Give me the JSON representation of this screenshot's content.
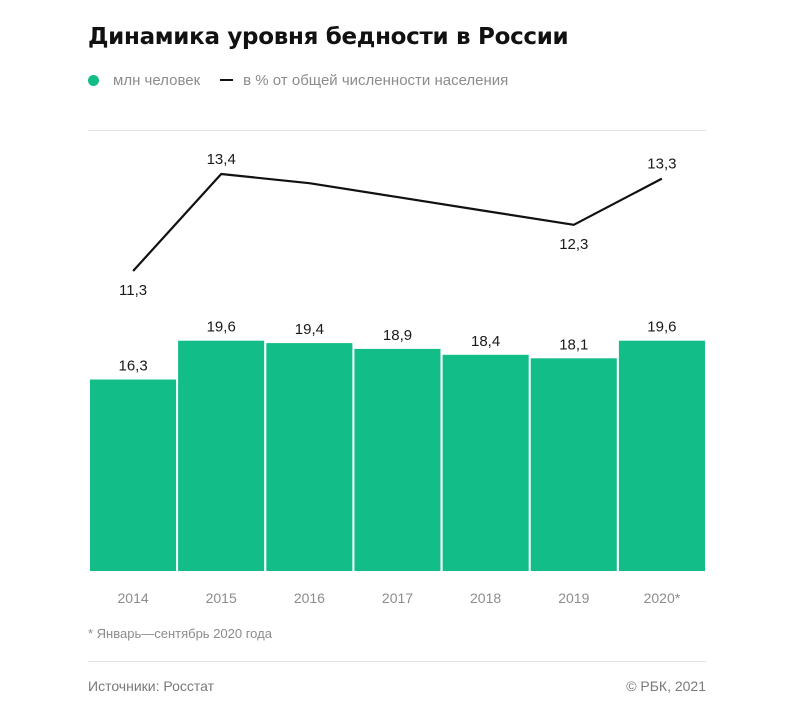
{
  "colors": {
    "bar": "#13bd88",
    "line": "#111111",
    "label": "#1a1a1a",
    "tick": "#8c8c8c"
  },
  "header": {
    "title": "Динамика уровня бедности в России"
  },
  "legend": {
    "bars_label": "млн человек",
    "line_label": "в % от общей численности населения"
  },
  "chart_data": {
    "type": "bar",
    "title": "Динамика уровня бедности в России",
    "categories": [
      "2014",
      "2015",
      "2016",
      "2017",
      "2018",
      "2019",
      "2020*"
    ],
    "series": [
      {
        "name": "млн человек",
        "type": "bar",
        "values": [
          16.3,
          19.6,
          19.4,
          18.9,
          18.4,
          18.1,
          19.6
        ],
        "labels": [
          "16,3",
          "19,6",
          "19,4",
          "18,9",
          "18,4",
          "18,1",
          "19,6"
        ]
      },
      {
        "name": "в % от общей численности населения",
        "type": "line",
        "values": [
          11.3,
          13.4,
          13.2,
          12.9,
          12.6,
          12.3,
          13.3
        ],
        "labels": [
          "11,3",
          "13,4",
          "",
          "",
          "",
          "12,3",
          "13,3"
        ]
      }
    ],
    "legend_position": "top-left",
    "grid": false
  },
  "footer": {
    "footnote": "* Январь—сентябрь 2020 года",
    "source": "Источники: Росстат",
    "copyright": "© РБК, 2021"
  }
}
